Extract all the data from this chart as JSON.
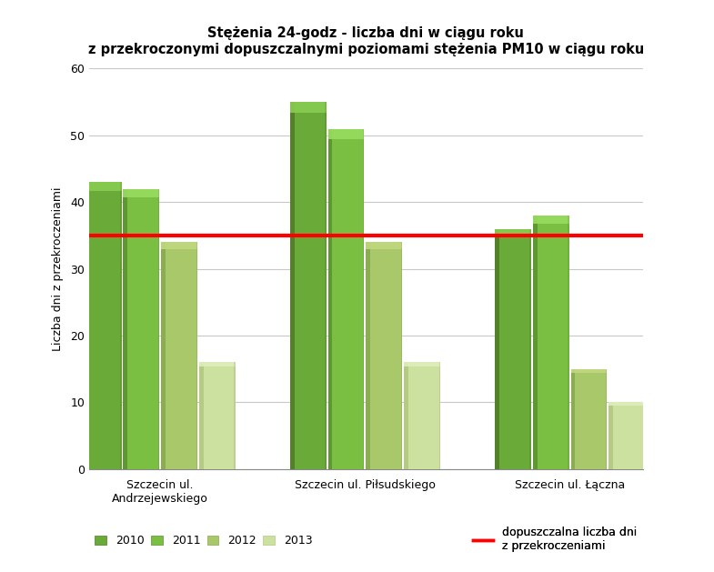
{
  "title": "Stężenia 24-godz - liczba dni w ciągu roku\nz przekroczonymi dopuszczalnymi poziomami stężenia PM10 w ciągu roku",
  "ylabel": "Liczba dni z przekroczeniami",
  "categories": [
    "Szczecin ul.\nAndrzejewskiego",
    "Szczecin ul. Piłsudskiego",
    "Szczecin ul. Łączna"
  ],
  "years": [
    "2010",
    "2011",
    "2012",
    "2013"
  ],
  "values": [
    [
      43,
      42,
      34,
      16
    ],
    [
      55,
      51,
      34,
      16
    ],
    [
      36,
      38,
      15,
      10
    ]
  ],
  "bar_colors_main": [
    "#6aaa38",
    "#7bbf42",
    "#a8c86a",
    "#cce0a0"
  ],
  "bar_colors_left": [
    "#507a28",
    "#5a9030",
    "#88a850",
    "#b0c880"
  ],
  "bar_colors_top": [
    "#88cc50",
    "#99dd60",
    "#c0d880",
    "#ddeebb"
  ],
  "reference_line": 35,
  "reference_line_color": "#ff0000",
  "reference_label": "dopuszczalna liczba dni\nz przekroczeniami",
  "legend_labels": [
    "2010",
    "2011",
    "2012",
    "2013"
  ],
  "ylim": [
    0,
    60
  ],
  "yticks": [
    0,
    10,
    20,
    30,
    40,
    50,
    60
  ],
  "background_color": "#ffffff",
  "title_fontsize": 10.5,
  "axis_fontsize": 9,
  "tick_fontsize": 9,
  "grid_color": "#c8c8c8",
  "group_centers": [
    0.38,
    1.62,
    2.86
  ],
  "bar_width": 0.22,
  "bar_gap": 0.01
}
